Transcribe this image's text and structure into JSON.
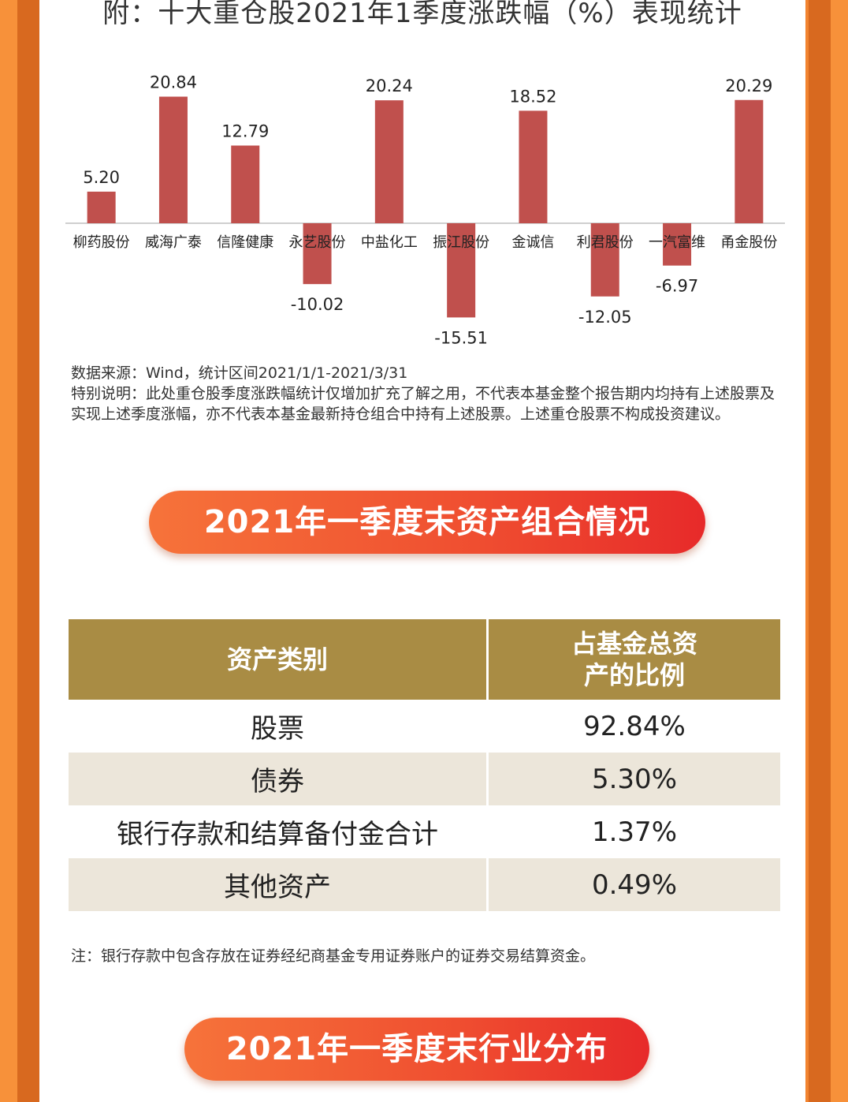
{
  "chart_data": {
    "type": "bar",
    "title": "附：十大重仓股2021年1季度涨跌幅（%）表现统计",
    "categories": [
      "柳药股份",
      "威海广泰",
      "信隆健康",
      "永艺股份",
      "中盐化工",
      "振江股份",
      "金诚信",
      "利君股份",
      "一汽富维",
      "甬金股份"
    ],
    "values": [
      5.2,
      20.84,
      12.79,
      -10.02,
      20.24,
      -15.51,
      18.52,
      -12.05,
      -6.97,
      20.29
    ],
    "value_labels": [
      "5.20",
      "20.84",
      "12.79",
      "-10.02",
      "20.24",
      "-15.51",
      "18.52",
      "-12.05",
      "-6.97",
      "20.29"
    ],
    "bar_color": "#c0504d",
    "grid": false,
    "ylim": [
      -20,
      25
    ]
  },
  "notes": {
    "source": "数据来源：Wind，统计区间2021/1/1-2021/3/31",
    "disclaimer": "特别说明：此处重仓股季度涨跌幅统计仅增加扩充了解之用，不代表本基金整个报告期内均持有上述股票及实现上述季度涨幅，亦不代表本基金最新持仓组合中持有上述股票。上述重仓股票不构成投资建议。"
  },
  "section1": {
    "title": "2021年一季度末资产组合情况"
  },
  "asset_table": {
    "header_col1": "资产类别",
    "header_col2": "占基金总资产的比例",
    "rows": [
      {
        "category": "股票",
        "ratio": "92.84%"
      },
      {
        "category": "债券",
        "ratio": "5.30%"
      },
      {
        "category": "银行存款和结算备付金合计",
        "ratio": "1.37%"
      },
      {
        "category": "其他资产",
        "ratio": "0.49%"
      }
    ],
    "header_color": "#a98c44",
    "stripe_color": "#ece6da"
  },
  "footnote": "注：银行存款中包含存放在证券经纪商基金专用证券账户的证券交易结算资金。",
  "section2": {
    "title": "2021年一季度末行业分布"
  },
  "colors": {
    "frame_orange": "#f28430",
    "banner_start": "#f6733a",
    "banner_end": "#e72a2a"
  }
}
